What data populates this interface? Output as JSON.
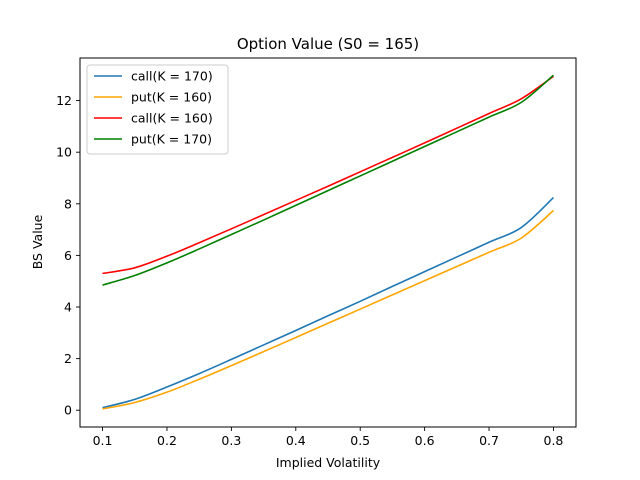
{
  "chart_data": {
    "type": "line",
    "title": "Option Value (S0 = 165)",
    "xlabel": "Implied Volatility",
    "ylabel": "BS Value",
    "xlim": [
      0.065,
      0.835
    ],
    "ylim": [
      -0.65,
      13.65
    ],
    "xticks": [
      0.1,
      0.2,
      0.3,
      0.4,
      0.5,
      0.6,
      0.7,
      0.8
    ],
    "xtick_labels": [
      "0.1",
      "0.2",
      "0.3",
      "0.4",
      "0.5",
      "0.6",
      "0.7",
      "0.8"
    ],
    "yticks": [
      0,
      2,
      4,
      6,
      8,
      10,
      12
    ],
    "ytick_labels": [
      "0",
      "2",
      "4",
      "6",
      "8",
      "10",
      "12"
    ],
    "grid": false,
    "legend_position": "top-left",
    "x": [
      0.1,
      0.15,
      0.2,
      0.25,
      0.3,
      0.35,
      0.4,
      0.45,
      0.5,
      0.55,
      0.6,
      0.65,
      0.7,
      0.75,
      0.8
    ],
    "series": [
      {
        "name": "call(K = 170)",
        "color": "#1f77b4",
        "values": [
          0.1,
          0.42,
          0.9,
          1.42,
          1.97,
          2.53,
          3.09,
          3.66,
          4.22,
          4.8,
          5.37,
          5.94,
          6.51,
          7.08,
          8.24
        ]
      },
      {
        "name": "put(K = 160)",
        "color": "#ffa500",
        "values": [
          0.05,
          0.3,
          0.7,
          1.2,
          1.73,
          2.27,
          2.82,
          3.37,
          3.92,
          4.47,
          5.02,
          5.57,
          6.12,
          6.67,
          7.74
        ]
      },
      {
        "name": "call(K = 160)",
        "color": "#ff0000",
        "values": [
          5.3,
          5.52,
          5.97,
          6.49,
          7.03,
          7.58,
          8.13,
          8.68,
          9.24,
          9.8,
          10.36,
          10.93,
          11.5,
          12.07,
          12.94
        ]
      },
      {
        "name": "put(K = 170)",
        "color": "#008000",
        "values": [
          4.85,
          5.22,
          5.71,
          6.25,
          6.81,
          7.37,
          7.94,
          8.51,
          9.08,
          9.65,
          10.22,
          10.79,
          11.36,
          11.93,
          12.98
        ]
      }
    ]
  }
}
